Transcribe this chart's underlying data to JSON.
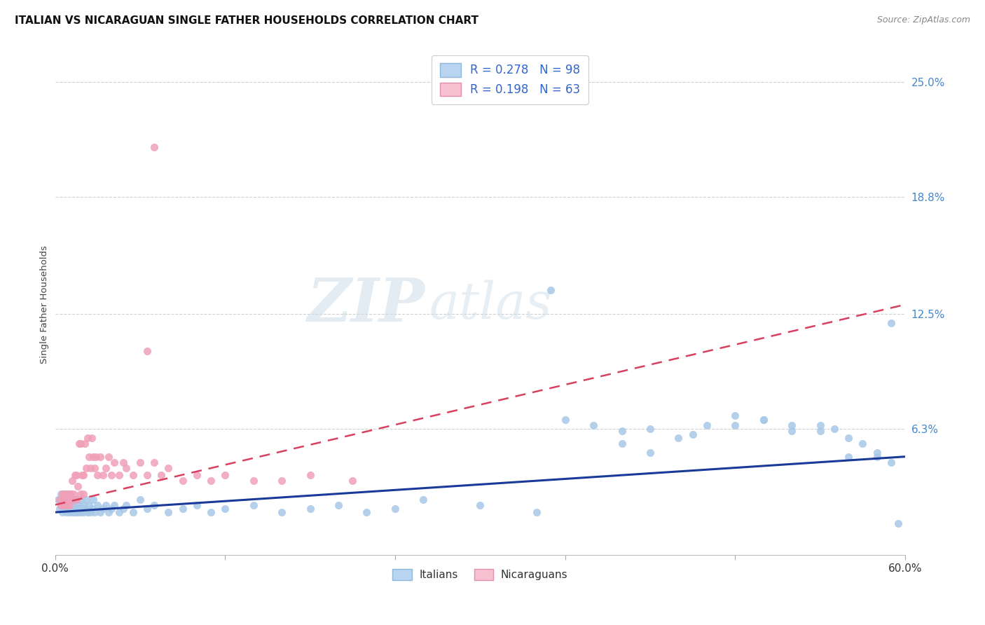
{
  "title": "ITALIAN VS NICARAGUAN SINGLE FATHER HOUSEHOLDS CORRELATION CHART",
  "source": "Source: ZipAtlas.com",
  "ylabel": "Single Father Households",
  "x_min": 0.0,
  "x_max": 0.6,
  "y_min": -0.005,
  "y_max": 0.265,
  "y_tick_labels_right": [
    "25.0%",
    "18.8%",
    "12.5%",
    "6.3%"
  ],
  "y_tick_values_right": [
    0.25,
    0.188,
    0.125,
    0.063
  ],
  "watermark_zip": "ZIP",
  "watermark_atlas": "atlas",
  "italian_color": "#a8c8e8",
  "nicaraguan_color": "#f0a0b8",
  "italian_line_color": "#1a3a9a",
  "nicaraguan_line_color": "#d84060",
  "legend_italian_label": "R = 0.278   N = 98",
  "legend_nicaraguan_label": "R = 0.198   N = 63",
  "legend_italian_face": "#b8d4f0",
  "legend_nicaraguan_face": "#f8c0d0",
  "background_color": "#ffffff",
  "grid_color": "#d0d0d0",
  "italian_line_x0": 0.0,
  "italian_line_x1": 0.6,
  "italian_line_y0": 0.018,
  "italian_line_y1": 0.048,
  "nicaraguan_line_x0": 0.0,
  "nicaraguan_line_x1": 0.6,
  "nicaraguan_line_y0": 0.022,
  "nicaraguan_line_y1": 0.13,
  "italian_scatter_x": [
    0.002,
    0.003,
    0.004,
    0.004,
    0.005,
    0.005,
    0.006,
    0.006,
    0.007,
    0.007,
    0.008,
    0.008,
    0.009,
    0.009,
    0.01,
    0.01,
    0.01,
    0.011,
    0.011,
    0.012,
    0.012,
    0.013,
    0.013,
    0.014,
    0.014,
    0.015,
    0.015,
    0.016,
    0.016,
    0.017,
    0.018,
    0.018,
    0.019,
    0.02,
    0.02,
    0.021,
    0.022,
    0.023,
    0.024,
    0.025,
    0.026,
    0.027,
    0.028,
    0.03,
    0.032,
    0.034,
    0.036,
    0.038,
    0.04,
    0.042,
    0.045,
    0.048,
    0.05,
    0.055,
    0.06,
    0.065,
    0.07,
    0.08,
    0.09,
    0.1,
    0.11,
    0.12,
    0.14,
    0.16,
    0.18,
    0.2,
    0.22,
    0.24,
    0.26,
    0.3,
    0.34,
    0.36,
    0.38,
    0.4,
    0.42,
    0.44,
    0.46,
    0.48,
    0.5,
    0.52,
    0.54,
    0.55,
    0.56,
    0.57,
    0.58,
    0.59,
    0.595,
    0.4,
    0.45,
    0.48,
    0.5,
    0.52,
    0.54,
    0.56,
    0.58,
    0.59,
    0.35,
    0.42
  ],
  "italian_scatter_y": [
    0.025,
    0.02,
    0.022,
    0.028,
    0.018,
    0.025,
    0.022,
    0.028,
    0.02,
    0.025,
    0.018,
    0.025,
    0.02,
    0.028,
    0.018,
    0.022,
    0.028,
    0.02,
    0.025,
    0.018,
    0.022,
    0.018,
    0.025,
    0.02,
    0.022,
    0.018,
    0.025,
    0.018,
    0.022,
    0.02,
    0.018,
    0.025,
    0.02,
    0.022,
    0.018,
    0.02,
    0.025,
    0.018,
    0.022,
    0.018,
    0.02,
    0.025,
    0.018,
    0.022,
    0.018,
    0.02,
    0.022,
    0.018,
    0.02,
    0.022,
    0.018,
    0.02,
    0.022,
    0.018,
    0.025,
    0.02,
    0.022,
    0.018,
    0.02,
    0.022,
    0.018,
    0.02,
    0.022,
    0.018,
    0.02,
    0.022,
    0.018,
    0.02,
    0.025,
    0.022,
    0.018,
    0.068,
    0.065,
    0.062,
    0.063,
    0.058,
    0.065,
    0.07,
    0.068,
    0.065,
    0.062,
    0.063,
    0.048,
    0.055,
    0.048,
    0.045,
    0.012,
    0.055,
    0.06,
    0.065,
    0.068,
    0.062,
    0.065,
    0.058,
    0.05,
    0.12,
    0.138,
    0.05
  ],
  "nicaraguan_scatter_x": [
    0.003,
    0.004,
    0.005,
    0.005,
    0.006,
    0.006,
    0.007,
    0.007,
    0.008,
    0.008,
    0.009,
    0.009,
    0.01,
    0.01,
    0.011,
    0.012,
    0.012,
    0.013,
    0.014,
    0.015,
    0.015,
    0.016,
    0.017,
    0.018,
    0.018,
    0.019,
    0.02,
    0.02,
    0.021,
    0.022,
    0.023,
    0.024,
    0.025,
    0.026,
    0.027,
    0.028,
    0.029,
    0.03,
    0.032,
    0.034,
    0.036,
    0.038,
    0.04,
    0.042,
    0.045,
    0.048,
    0.05,
    0.055,
    0.06,
    0.065,
    0.07,
    0.075,
    0.08,
    0.09,
    0.1,
    0.11,
    0.12,
    0.14,
    0.16,
    0.18,
    0.21,
    0.065,
    0.07
  ],
  "nicaraguan_scatter_y": [
    0.025,
    0.022,
    0.028,
    0.022,
    0.025,
    0.028,
    0.022,
    0.028,
    0.025,
    0.022,
    0.025,
    0.028,
    0.022,
    0.025,
    0.028,
    0.025,
    0.035,
    0.028,
    0.038,
    0.025,
    0.038,
    0.032,
    0.055,
    0.028,
    0.055,
    0.038,
    0.028,
    0.038,
    0.055,
    0.042,
    0.058,
    0.048,
    0.042,
    0.058,
    0.048,
    0.042,
    0.048,
    0.038,
    0.048,
    0.038,
    0.042,
    0.048,
    0.038,
    0.045,
    0.038,
    0.045,
    0.042,
    0.038,
    0.045,
    0.038,
    0.045,
    0.038,
    0.042,
    0.035,
    0.038,
    0.035,
    0.038,
    0.035,
    0.035,
    0.038,
    0.035,
    0.105,
    0.215
  ]
}
